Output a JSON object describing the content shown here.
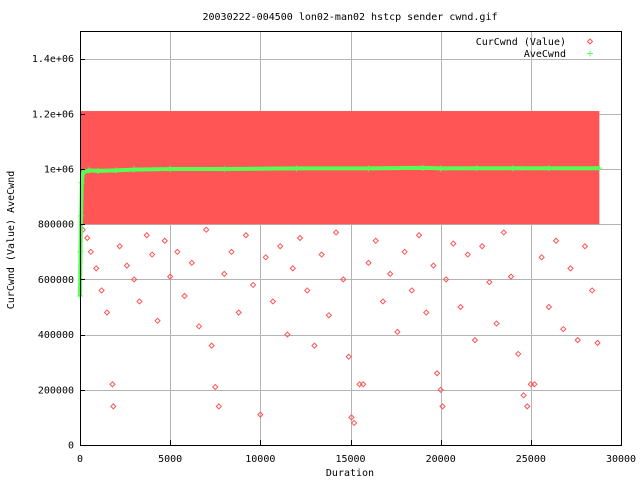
{
  "chart_data": {
    "type": "scatter",
    "title": "20030222-004500 lon02-man02 hstcp sender cwnd.gif",
    "xlabel": "Duration",
    "ylabel": "CurCwnd (Value) AveCwnd",
    "xlim": [
      0,
      30000
    ],
    "ylim": [
      0,
      1500000
    ],
    "grid": true,
    "legend_position": "top-right",
    "x_ticks": [
      0,
      5000,
      10000,
      15000,
      20000,
      25000,
      30000
    ],
    "x_tick_labels": [
      "0",
      "5000",
      "10000",
      "15000",
      "20000",
      "25000",
      "30000"
    ],
    "y_ticks": [
      0,
      200000,
      400000,
      600000,
      800000,
      1000000,
      1200000,
      1400000
    ],
    "y_tick_labels": [
      "0",
      "200000",
      "400000",
      "600000",
      "800000",
      "1e+06",
      "1.2e+06",
      "1.4e+06"
    ],
    "series": [
      {
        "name": "CurCwnd (Value)",
        "marker": "diamond",
        "color": "#ff5555",
        "dense_band": {
          "x_range": [
            0,
            28800
          ],
          "y_range": [
            800000,
            1210000
          ]
        },
        "points": [
          [
            150,
            780000
          ],
          [
            400,
            750000
          ],
          [
            600,
            700000
          ],
          [
            900,
            640000
          ],
          [
            1200,
            560000
          ],
          [
            1500,
            480000
          ],
          [
            1800,
            220000
          ],
          [
            1850,
            140000
          ],
          [
            2200,
            720000
          ],
          [
            2600,
            650000
          ],
          [
            3000,
            600000
          ],
          [
            3300,
            520000
          ],
          [
            3700,
            760000
          ],
          [
            4000,
            690000
          ],
          [
            4300,
            450000
          ],
          [
            4700,
            740000
          ],
          [
            5000,
            610000
          ],
          [
            5400,
            700000
          ],
          [
            5800,
            540000
          ],
          [
            6200,
            660000
          ],
          [
            6600,
            430000
          ],
          [
            7000,
            780000
          ],
          [
            7300,
            360000
          ],
          [
            7500,
            210000
          ],
          [
            7700,
            140000
          ],
          [
            8000,
            620000
          ],
          [
            8400,
            700000
          ],
          [
            8800,
            480000
          ],
          [
            9200,
            760000
          ],
          [
            9600,
            580000
          ],
          [
            10000,
            110000
          ],
          [
            10300,
            680000
          ],
          [
            10700,
            520000
          ],
          [
            11100,
            720000
          ],
          [
            11500,
            400000
          ],
          [
            11800,
            640000
          ],
          [
            12200,
            750000
          ],
          [
            12600,
            560000
          ],
          [
            13000,
            360000
          ],
          [
            13400,
            690000
          ],
          [
            13800,
            470000
          ],
          [
            14200,
            770000
          ],
          [
            14600,
            600000
          ],
          [
            14900,
            320000
          ],
          [
            15050,
            100000
          ],
          [
            15200,
            80000
          ],
          [
            15500,
            220000
          ],
          [
            15700,
            220000
          ],
          [
            16000,
            660000
          ],
          [
            16400,
            740000
          ],
          [
            16800,
            520000
          ],
          [
            17200,
            620000
          ],
          [
            17600,
            410000
          ],
          [
            18000,
            700000
          ],
          [
            18400,
            560000
          ],
          [
            18800,
            760000
          ],
          [
            19200,
            480000
          ],
          [
            19600,
            650000
          ],
          [
            19800,
            260000
          ],
          [
            20000,
            200000
          ],
          [
            20100,
            140000
          ],
          [
            20300,
            600000
          ],
          [
            20700,
            730000
          ],
          [
            21100,
            500000
          ],
          [
            21500,
            690000
          ],
          [
            21900,
            380000
          ],
          [
            22300,
            720000
          ],
          [
            22700,
            590000
          ],
          [
            23100,
            440000
          ],
          [
            23500,
            770000
          ],
          [
            23900,
            610000
          ],
          [
            24300,
            330000
          ],
          [
            24600,
            180000
          ],
          [
            24800,
            140000
          ],
          [
            25000,
            220000
          ],
          [
            25200,
            220000
          ],
          [
            25600,
            680000
          ],
          [
            26000,
            500000
          ],
          [
            26400,
            740000
          ],
          [
            26800,
            420000
          ],
          [
            27200,
            640000
          ],
          [
            27600,
            380000
          ],
          [
            28000,
            720000
          ],
          [
            28400,
            560000
          ],
          [
            28700,
            370000
          ]
        ]
      },
      {
        "name": "AveCwnd",
        "marker": "plus",
        "color": "#55ff55",
        "points": [
          [
            0,
            540000
          ],
          [
            30,
            700000
          ],
          [
            60,
            830000
          ],
          [
            100,
            950000
          ],
          [
            150,
            985000
          ],
          [
            250,
            990000
          ],
          [
            500,
            995000
          ],
          [
            1000,
            993000
          ],
          [
            2000,
            995000
          ],
          [
            3000,
            998000
          ],
          [
            5000,
            1000000
          ],
          [
            8000,
            1000000
          ],
          [
            12000,
            1002000
          ],
          [
            16000,
            1002000
          ],
          [
            19000,
            1004000
          ],
          [
            20000,
            1002000
          ],
          [
            22000,
            1003000
          ],
          [
            24000,
            1003000
          ],
          [
            26000,
            1003000
          ],
          [
            28800,
            1003000
          ]
        ]
      }
    ]
  }
}
